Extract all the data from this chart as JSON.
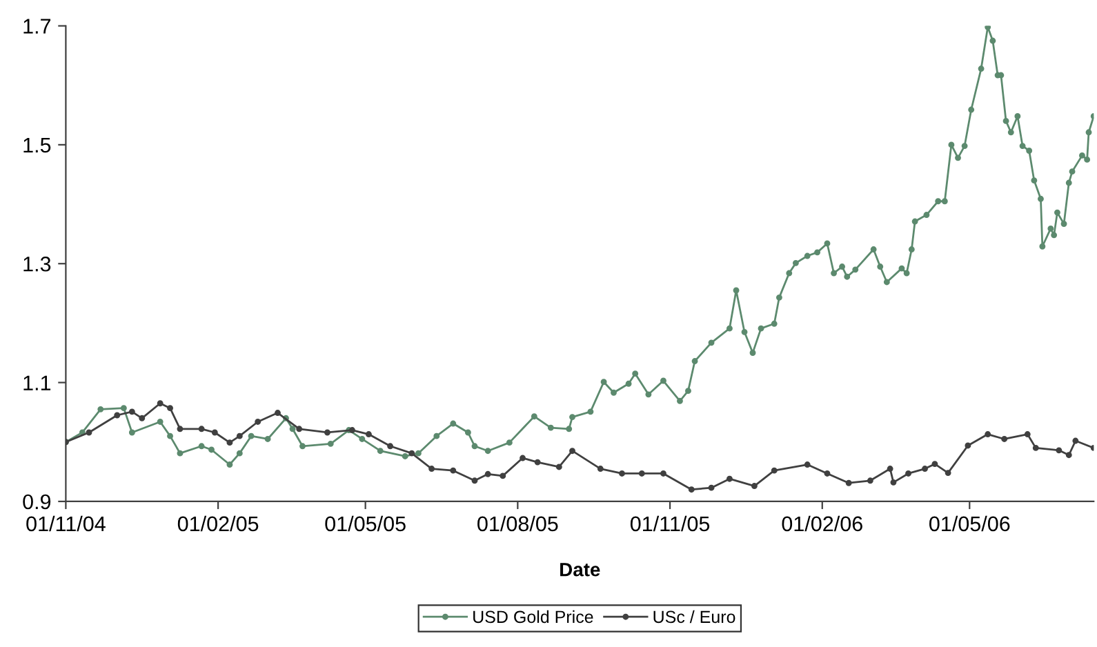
{
  "chart_data": {
    "type": "line",
    "xlabel": "Date",
    "xlim": [
      "2004-11-01",
      "2006-07-15"
    ],
    "xticks": [
      {
        "value": "2004-11-01",
        "label": "01/11/04"
      },
      {
        "value": "2005-02-01",
        "label": "01/02/05"
      },
      {
        "value": "2005-05-01",
        "label": "01/05/05"
      },
      {
        "value": "2005-08-01",
        "label": "01/08/05"
      },
      {
        "value": "2005-11-01",
        "label": "01/11/05"
      },
      {
        "value": "2006-02-01",
        "label": "01/02/06"
      },
      {
        "value": "2006-05-01",
        "label": "01/05/06"
      }
    ],
    "ylim": [
      0.9,
      1.7
    ],
    "yticks": [
      0.9,
      1.1,
      1.3,
      1.5,
      1.7
    ],
    "grid": false,
    "legend": "bottom",
    "marker": "circle",
    "line_style": "solid",
    "series": [
      {
        "name": "USD Gold Price",
        "color": "#5c8a6e",
        "x": [
          "2004-11-01",
          "2004-11-11",
          "2004-11-22",
          "2004-12-06",
          "2004-12-11",
          "2004-12-28",
          "2005-01-03",
          "2005-01-09",
          "2005-01-22",
          "2005-01-28",
          "2005-02-08",
          "2005-02-14",
          "2005-02-21",
          "2005-03-03",
          "2005-03-14",
          "2005-03-18",
          "2005-03-24",
          "2005-04-10",
          "2005-04-21",
          "2005-04-29",
          "2005-05-10",
          "2005-05-25",
          "2005-06-02",
          "2005-06-13",
          "2005-06-23",
          "2005-07-02",
          "2005-07-06",
          "2005-07-14",
          "2005-07-27",
          "2005-08-11",
          "2005-08-21",
          "2005-09-01",
          "2005-09-03",
          "2005-09-14",
          "2005-09-22",
          "2005-09-28",
          "2005-10-07",
          "2005-10-11",
          "2005-10-19",
          "2005-10-28",
          "2005-11-07",
          "2005-11-12",
          "2005-11-16",
          "2005-11-26",
          "2005-12-07",
          "2005-12-11",
          "2005-12-16",
          "2005-12-21",
          "2005-12-26",
          "2006-01-03",
          "2006-01-06",
          "2006-01-12",
          "2006-01-16",
          "2006-01-23",
          "2006-01-29",
          "2006-02-04",
          "2006-02-08",
          "2006-02-13",
          "2006-02-16",
          "2006-02-21",
          "2006-03-04",
          "2006-03-08",
          "2006-03-12",
          "2006-03-21",
          "2006-03-24",
          "2006-03-27",
          "2006-03-29",
          "2006-04-05",
          "2006-04-12",
          "2006-04-16",
          "2006-04-20",
          "2006-04-24",
          "2006-04-28",
          "2006-05-02",
          "2006-05-08",
          "2006-05-12",
          "2006-05-15",
          "2006-05-18",
          "2006-05-20",
          "2006-05-23",
          "2006-05-26",
          "2006-05-30",
          "2006-06-02",
          "2006-06-06",
          "2006-06-09",
          "2006-06-13",
          "2006-06-14",
          "2006-06-19",
          "2006-06-21",
          "2006-06-23",
          "2006-06-27",
          "2006-06-30",
          "2006-07-02",
          "2006-07-08",
          "2006-07-11",
          "2006-07-12",
          "2006-07-15"
        ],
        "values": [
          1.0,
          1.016,
          1.055,
          1.057,
          1.016,
          1.034,
          1.01,
          0.981,
          0.993,
          0.987,
          0.962,
          0.981,
          1.01,
          1.005,
          1.04,
          1.022,
          0.993,
          0.997,
          1.02,
          1.005,
          0.985,
          0.976,
          0.981,
          1.01,
          1.031,
          1.016,
          0.993,
          0.985,
          0.999,
          1.043,
          1.024,
          1.022,
          1.042,
          1.051,
          1.101,
          1.083,
          1.098,
          1.115,
          1.08,
          1.103,
          1.069,
          1.086,
          1.136,
          1.167,
          1.191,
          1.255,
          1.185,
          1.15,
          1.191,
          1.199,
          1.243,
          1.284,
          1.301,
          1.313,
          1.319,
          1.334,
          1.284,
          1.295,
          1.278,
          1.29,
          1.324,
          1.295,
          1.269,
          1.292,
          1.284,
          1.324,
          1.371,
          1.382,
          1.405,
          1.405,
          1.5,
          1.478,
          1.498,
          1.559,
          1.628,
          1.698,
          1.675,
          1.617,
          1.617,
          1.54,
          1.521,
          1.548,
          1.498,
          1.49,
          1.44,
          1.409,
          1.329,
          1.359,
          1.348,
          1.386,
          1.367,
          1.436,
          1.455,
          1.482,
          1.475,
          1.521,
          1.548
        ]
      },
      {
        "name": "USc / Euro",
        "color": "#404040",
        "x": [
          "2004-11-01",
          "2004-11-15",
          "2004-12-02",
          "2004-12-11",
          "2004-12-17",
          "2004-12-28",
          "2005-01-03",
          "2005-01-09",
          "2005-01-22",
          "2005-01-30",
          "2005-02-08",
          "2005-02-14",
          "2005-02-25",
          "2005-03-09",
          "2005-03-22",
          "2005-04-08",
          "2005-04-23",
          "2005-05-03",
          "2005-05-16",
          "2005-05-29",
          "2005-06-10",
          "2005-06-23",
          "2005-07-06",
          "2005-07-14",
          "2005-07-23",
          "2005-08-04",
          "2005-08-13",
          "2005-08-26",
          "2005-09-03",
          "2005-09-20",
          "2005-10-03",
          "2005-10-15",
          "2005-10-28",
          "2005-11-14",
          "2005-11-26",
          "2005-12-07",
          "2005-12-22",
          "2006-01-03",
          "2006-01-23",
          "2006-02-04",
          "2006-02-17",
          "2006-03-02",
          "2006-03-14",
          "2006-03-16",
          "2006-03-25",
          "2006-04-04",
          "2006-04-10",
          "2006-04-18",
          "2006-04-30",
          "2006-05-12",
          "2006-05-22",
          "2006-06-05",
          "2006-06-10",
          "2006-06-24",
          "2006-06-30",
          "2006-07-04",
          "2006-07-15"
        ],
        "values": [
          1.0,
          1.016,
          1.045,
          1.051,
          1.04,
          1.065,
          1.057,
          1.022,
          1.022,
          1.016,
          0.999,
          1.01,
          1.034,
          1.049,
          1.022,
          1.016,
          1.02,
          1.013,
          0.993,
          0.981,
          0.955,
          0.952,
          0.935,
          0.946,
          0.943,
          0.973,
          0.966,
          0.958,
          0.985,
          0.955,
          0.947,
          0.947,
          0.947,
          0.92,
          0.923,
          0.938,
          0.926,
          0.952,
          0.962,
          0.947,
          0.931,
          0.935,
          0.955,
          0.932,
          0.947,
          0.955,
          0.963,
          0.948,
          0.994,
          1.013,
          1.005,
          1.013,
          0.99,
          0.986,
          0.978,
          1.002,
          0.99
        ]
      }
    ]
  }
}
